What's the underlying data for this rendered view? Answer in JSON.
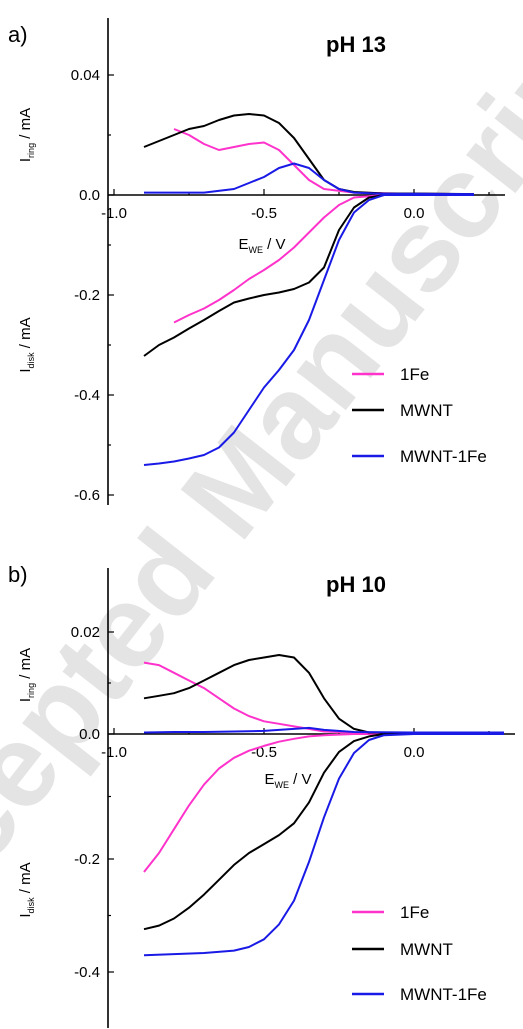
{
  "watermark": "Accepted Manuscript",
  "colors": {
    "1Fe": "#ff33cc",
    "MWNT": "#000000",
    "MWNT-1Fe": "#1a1ae6"
  },
  "chart_data": [
    {
      "panel": "a)",
      "title": "pH 13",
      "type": "line",
      "xlabel": "E_WE / V",
      "x_ticks": [
        "-1.0",
        "-0.5",
        "0.0"
      ],
      "ring_axis": {
        "label": "I_ring / mA",
        "ylim": [
          0,
          0.06
        ],
        "ticks": [
          "0.04",
          "0.0"
        ]
      },
      "disk_axis": {
        "label": "I_disk / mA",
        "ylim": [
          -0.6,
          0
        ],
        "ticks": [
          "-0.2",
          "-0.4",
          "-0.6"
        ]
      },
      "xlim": [
        -1.0,
        0.3
      ],
      "legend": {
        "placement": "bottom-right",
        "entries": [
          "1Fe",
          "MWNT",
          "MWNT-1Fe"
        ]
      },
      "series": [
        {
          "name": "1Fe",
          "ring": [
            [
              -0.8,
              0.022
            ],
            [
              -0.75,
              0.02
            ],
            [
              -0.7,
              0.017
            ],
            [
              -0.65,
              0.015
            ],
            [
              -0.6,
              0.016
            ],
            [
              -0.55,
              0.017
            ],
            [
              -0.5,
              0.0175
            ],
            [
              -0.45,
              0.015
            ],
            [
              -0.4,
              0.01
            ],
            [
              -0.35,
              0.005
            ],
            [
              -0.3,
              0.002
            ],
            [
              -0.2,
              0.0008
            ],
            [
              -0.1,
              0.0006
            ],
            [
              0.0,
              0.0004
            ],
            [
              0.2,
              0.0003
            ]
          ],
          "disk": [
            [
              -0.8,
              -0.255
            ],
            [
              -0.75,
              -0.24
            ],
            [
              -0.7,
              -0.227
            ],
            [
              -0.65,
              -0.21
            ],
            [
              -0.6,
              -0.19
            ],
            [
              -0.55,
              -0.168
            ],
            [
              -0.5,
              -0.15
            ],
            [
              -0.45,
              -0.13
            ],
            [
              -0.4,
              -0.105
            ],
            [
              -0.35,
              -0.075
            ],
            [
              -0.3,
              -0.045
            ],
            [
              -0.25,
              -0.02
            ],
            [
              -0.2,
              -0.005
            ],
            [
              -0.1,
              0.0
            ],
            [
              0.0,
              0.0
            ],
            [
              0.2,
              0.0
            ]
          ]
        },
        {
          "name": "MWNT",
          "ring": [
            [
              -0.9,
              0.016
            ],
            [
              -0.85,
              0.018
            ],
            [
              -0.8,
              0.02
            ],
            [
              -0.75,
              0.022
            ],
            [
              -0.7,
              0.023
            ],
            [
              -0.65,
              0.025
            ],
            [
              -0.6,
              0.0265
            ],
            [
              -0.55,
              0.027
            ],
            [
              -0.5,
              0.0265
            ],
            [
              -0.45,
              0.024
            ],
            [
              -0.4,
              0.019
            ],
            [
              -0.35,
              0.012
            ],
            [
              -0.3,
              0.005
            ],
            [
              -0.25,
              0.002
            ],
            [
              -0.2,
              0.001
            ],
            [
              -0.1,
              0.0005
            ],
            [
              0.0,
              0.0005
            ],
            [
              0.2,
              0.0003
            ]
          ],
          "disk": [
            [
              -0.9,
              -0.322
            ],
            [
              -0.85,
              -0.3
            ],
            [
              -0.8,
              -0.285
            ],
            [
              -0.75,
              -0.267
            ],
            [
              -0.7,
              -0.25
            ],
            [
              -0.65,
              -0.232
            ],
            [
              -0.6,
              -0.215
            ],
            [
              -0.55,
              -0.207
            ],
            [
              -0.5,
              -0.2
            ],
            [
              -0.45,
              -0.195
            ],
            [
              -0.4,
              -0.188
            ],
            [
              -0.35,
              -0.175
            ],
            [
              -0.3,
              -0.145
            ],
            [
              -0.25,
              -0.07
            ],
            [
              -0.2,
              -0.025
            ],
            [
              -0.15,
              -0.005
            ],
            [
              -0.1,
              0.0
            ],
            [
              0.0,
              0.0
            ],
            [
              0.2,
              0.0
            ]
          ]
        },
        {
          "name": "MWNT-1Fe",
          "ring": [
            [
              -0.9,
              0.0008
            ],
            [
              -0.8,
              0.0008
            ],
            [
              -0.7,
              0.0008
            ],
            [
              -0.6,
              0.002
            ],
            [
              -0.55,
              0.004
            ],
            [
              -0.5,
              0.006
            ],
            [
              -0.45,
              0.009
            ],
            [
              -0.4,
              0.0105
            ],
            [
              -0.35,
              0.009
            ],
            [
              -0.3,
              0.005
            ],
            [
              -0.25,
              0.002
            ],
            [
              -0.2,
              0.0008
            ],
            [
              -0.1,
              0.0004
            ],
            [
              0.0,
              0.0004
            ],
            [
              0.2,
              0.0003
            ]
          ],
          "disk": [
            [
              -0.9,
              -0.54
            ],
            [
              -0.85,
              -0.537
            ],
            [
              -0.8,
              -0.533
            ],
            [
              -0.75,
              -0.527
            ],
            [
              -0.7,
              -0.52
            ],
            [
              -0.65,
              -0.505
            ],
            [
              -0.6,
              -0.475
            ],
            [
              -0.55,
              -0.43
            ],
            [
              -0.5,
              -0.385
            ],
            [
              -0.45,
              -0.35
            ],
            [
              -0.4,
              -0.31
            ],
            [
              -0.35,
              -0.25
            ],
            [
              -0.3,
              -0.17
            ],
            [
              -0.25,
              -0.09
            ],
            [
              -0.2,
              -0.035
            ],
            [
              -0.15,
              -0.01
            ],
            [
              -0.1,
              0.0
            ],
            [
              0.0,
              0.0
            ],
            [
              0.2,
              0.0
            ]
          ]
        }
      ]
    },
    {
      "panel": "b)",
      "title": "pH 10",
      "type": "line",
      "xlabel": "E_WE / V",
      "x_ticks": [
        "-1.0",
        "-0.5",
        "0.0"
      ],
      "ring_axis": {
        "label": "I_ring / mA",
        "ylim": [
          0,
          0.03
        ],
        "ticks": [
          "0.02",
          "0.0"
        ]
      },
      "disk_axis": {
        "label": "I_disk / mA",
        "ylim": [
          -0.45,
          0
        ],
        "ticks": [
          "-0.2",
          "-0.4"
        ]
      },
      "xlim": [
        -1.0,
        0.3
      ],
      "legend": {
        "placement": "bottom-right",
        "entries": [
          "1Fe",
          "MWNT",
          "MWNT-1Fe"
        ]
      },
      "series": [
        {
          "name": "1Fe",
          "ring": [
            [
              -0.9,
              0.014
            ],
            [
              -0.85,
              0.0135
            ],
            [
              -0.8,
              0.012
            ],
            [
              -0.75,
              0.0105
            ],
            [
              -0.7,
              0.009
            ],
            [
              -0.65,
              0.007
            ],
            [
              -0.6,
              0.005
            ],
            [
              -0.55,
              0.0035
            ],
            [
              -0.5,
              0.0025
            ],
            [
              -0.45,
              0.002
            ],
            [
              -0.4,
              0.0015
            ],
            [
              -0.35,
              0.001
            ],
            [
              -0.3,
              0.0005
            ],
            [
              -0.2,
              0.0003
            ],
            [
              0.0,
              0.0003
            ],
            [
              0.3,
              0.0003
            ]
          ],
          "disk": [
            [
              -0.9,
              -0.232
            ],
            [
              -0.85,
              -0.2
            ],
            [
              -0.8,
              -0.16
            ],
            [
              -0.75,
              -0.12
            ],
            [
              -0.7,
              -0.085
            ],
            [
              -0.65,
              -0.058
            ],
            [
              -0.6,
              -0.04
            ],
            [
              -0.55,
              -0.028
            ],
            [
              -0.5,
              -0.02
            ],
            [
              -0.45,
              -0.013
            ],
            [
              -0.4,
              -0.008
            ],
            [
              -0.35,
              -0.004
            ],
            [
              -0.3,
              -0.002
            ],
            [
              -0.2,
              0.0
            ],
            [
              0.0,
              0.0
            ],
            [
              0.3,
              0.0
            ]
          ]
        },
        {
          "name": "MWNT",
          "ring": [
            [
              -0.9,
              0.007
            ],
            [
              -0.85,
              0.0075
            ],
            [
              -0.8,
              0.008
            ],
            [
              -0.75,
              0.009
            ],
            [
              -0.7,
              0.0105
            ],
            [
              -0.65,
              0.012
            ],
            [
              -0.6,
              0.0135
            ],
            [
              -0.55,
              0.0145
            ],
            [
              -0.5,
              0.015
            ],
            [
              -0.45,
              0.0155
            ],
            [
              -0.4,
              0.015
            ],
            [
              -0.35,
              0.012
            ],
            [
              -0.3,
              0.007
            ],
            [
              -0.25,
              0.003
            ],
            [
              -0.2,
              0.001
            ],
            [
              -0.15,
              0.0003
            ],
            [
              0.0,
              0.0003
            ],
            [
              0.3,
              0.0003
            ]
          ],
          "disk": [
            [
              -0.9,
              -0.328
            ],
            [
              -0.85,
              -0.322
            ],
            [
              -0.8,
              -0.31
            ],
            [
              -0.75,
              -0.292
            ],
            [
              -0.7,
              -0.27
            ],
            [
              -0.65,
              -0.245
            ],
            [
              -0.6,
              -0.22
            ],
            [
              -0.55,
              -0.2
            ],
            [
              -0.5,
              -0.185
            ],
            [
              -0.45,
              -0.17
            ],
            [
              -0.4,
              -0.15
            ],
            [
              -0.35,
              -0.115
            ],
            [
              -0.3,
              -0.065
            ],
            [
              -0.25,
              -0.03
            ],
            [
              -0.2,
              -0.012
            ],
            [
              -0.15,
              -0.004
            ],
            [
              -0.1,
              0.0
            ],
            [
              0.0,
              0.0
            ],
            [
              0.3,
              0.0
            ]
          ]
        },
        {
          "name": "MWNT-1Fe",
          "ring": [
            [
              -0.9,
              0.0003
            ],
            [
              -0.8,
              0.0004
            ],
            [
              -0.7,
              0.0004
            ],
            [
              -0.6,
              0.0005
            ],
            [
              -0.5,
              0.0006
            ],
            [
              -0.45,
              0.0008
            ],
            [
              -0.4,
              0.001
            ],
            [
              -0.35,
              0.0012
            ],
            [
              -0.3,
              0.0008
            ],
            [
              -0.2,
              0.0004
            ],
            [
              0.0,
              0.0003
            ],
            [
              0.3,
              0.0003
            ]
          ],
          "disk": [
            [
              -0.9,
              -0.372
            ],
            [
              -0.8,
              -0.37
            ],
            [
              -0.7,
              -0.368
            ],
            [
              -0.6,
              -0.364
            ],
            [
              -0.55,
              -0.358
            ],
            [
              -0.5,
              -0.345
            ],
            [
              -0.45,
              -0.32
            ],
            [
              -0.4,
              -0.28
            ],
            [
              -0.35,
              -0.215
            ],
            [
              -0.3,
              -0.14
            ],
            [
              -0.25,
              -0.075
            ],
            [
              -0.2,
              -0.032
            ],
            [
              -0.15,
              -0.01
            ],
            [
              -0.1,
              -0.002
            ],
            [
              0.0,
              0.0
            ],
            [
              0.3,
              0.0
            ]
          ]
        }
      ]
    }
  ]
}
